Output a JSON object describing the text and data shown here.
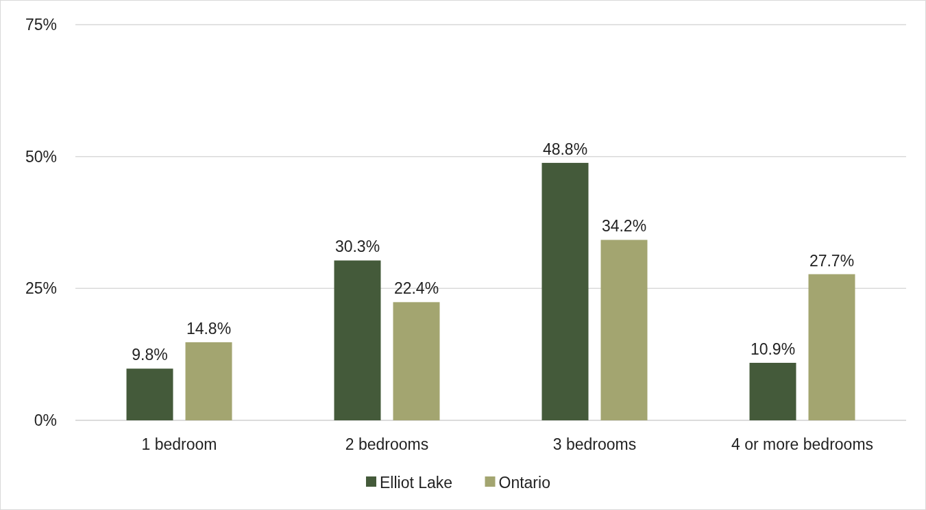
{
  "chart_data": {
    "type": "bar",
    "categories": [
      "1 bedroom",
      "2 bedrooms",
      "3 bedrooms",
      "4 or more bedrooms"
    ],
    "series": [
      {
        "name": "Elliot Lake",
        "color": "#445a3a",
        "values": [
          9.8,
          30.3,
          48.8,
          10.9
        ],
        "value_labels": [
          "9.8%",
          "30.3%",
          "48.8%",
          "10.9%"
        ]
      },
      {
        "name": "Ontario",
        "color": "#a3a570",
        "values": [
          14.8,
          22.4,
          34.2,
          27.7
        ],
        "value_labels": [
          "14.8%",
          "22.4%",
          "34.2%",
          "27.7%"
        ]
      }
    ],
    "ylim": [
      0,
      75
    ],
    "yticks": [
      {
        "value": 0,
        "label": "0%"
      },
      {
        "value": 25,
        "label": "25%"
      },
      {
        "value": 50,
        "label": "50%"
      },
      {
        "value": 75,
        "label": "75%"
      }
    ],
    "grid": "y",
    "legend": "bottom"
  }
}
